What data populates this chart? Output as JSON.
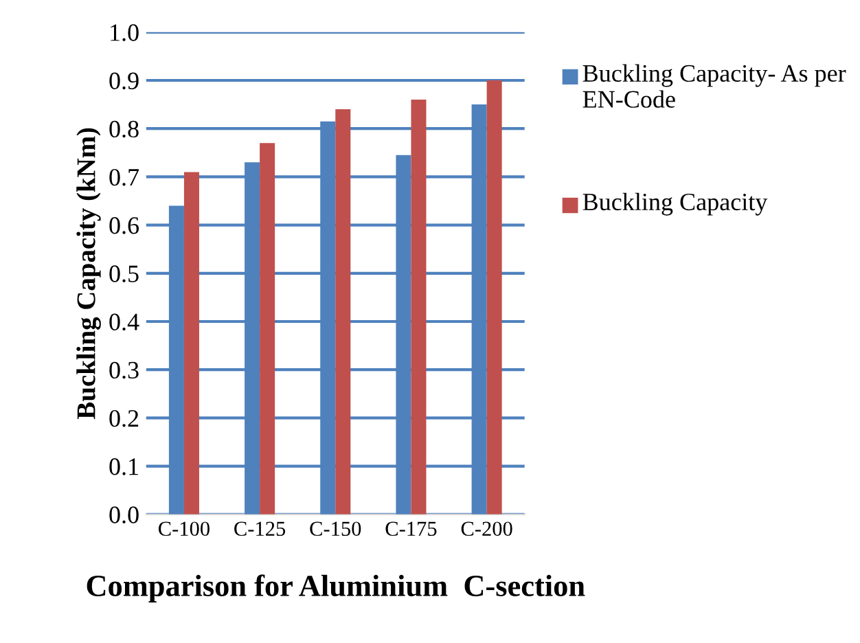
{
  "chart_data": {
    "type": "bar",
    "xlabel": "Comparison for Aluminium  C-section",
    "ylabel": "Buckling Capacity (kNm)",
    "categories": [
      "C-100",
      "C-125",
      "C-150",
      "C-175",
      "C-200"
    ],
    "series": [
      {
        "name": "Buckling Capacity- As per EN-Code",
        "color": "#4f81bd",
        "values": [
          0.64,
          0.73,
          0.815,
          0.745,
          0.85
        ]
      },
      {
        "name": "Buckling Capacity",
        "color": "#c0504d",
        "values": [
          0.71,
          0.77,
          0.84,
          0.86,
          0.9
        ]
      }
    ],
    "ylim": [
      0,
      1.0
    ],
    "yticks": [
      {
        "value": 0,
        "label": "0.0"
      },
      0.1,
      0.2,
      0.3,
      0.4,
      0.5,
      0.6,
      0.7,
      0.8,
      0.9,
      {
        "value": 1.0,
        "label": "1.0"
      }
    ],
    "grid": "y",
    "legend": "right"
  }
}
